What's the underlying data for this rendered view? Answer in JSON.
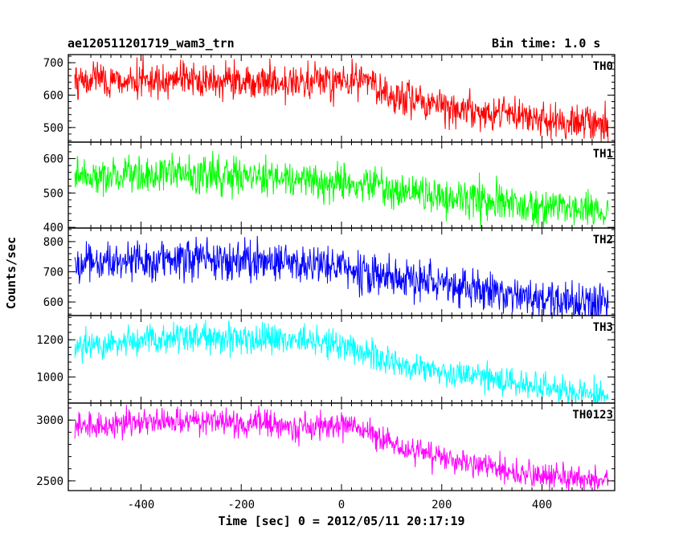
{
  "header": {
    "title": "ae120511201719_wam3_trn",
    "bin_time": "Bin time: 1.0 s"
  },
  "chart_data": {
    "type": "line",
    "title": "ae120511201719_wam3_trn",
    "xlabel": "Time [sec] 0 = 2012/05/11 20:17:19",
    "ylabel": "Counts/sec",
    "xlim": [
      -545,
      545
    ],
    "x_ticks": [
      -400,
      -200,
      0,
      200,
      400
    ],
    "x_range": [
      -532,
      532
    ],
    "series_shape_x": [
      -532,
      -400,
      -300,
      -200,
      -100,
      0,
      50,
      100,
      200,
      300,
      400,
      532
    ],
    "panels": [
      {
        "name": "TH0",
        "color": "#ff0000",
        "ylim": [
          455,
          725
        ],
        "y_ticks": [
          500,
          600,
          700
        ],
        "trend": [
          645,
          650,
          645,
          640,
          637,
          645,
          645,
          595,
          565,
          545,
          525,
          510
        ],
        "noise": 28
      },
      {
        "name": "TH1",
        "color": "#00ff00",
        "ylim": [
          398,
          648
        ],
        "y_ticks": [
          400,
          500,
          600
        ],
        "trend": [
          545,
          555,
          555,
          550,
          540,
          530,
          525,
          505,
          490,
          475,
          460,
          450
        ],
        "noise": 27
      },
      {
        "name": "TH2",
        "color": "#0000ff",
        "ylim": [
          555,
          845
        ],
        "y_ticks": [
          600,
          700,
          800
        ],
        "trend": [
          725,
          740,
          745,
          740,
          725,
          715,
          700,
          680,
          660,
          635,
          610,
          590
        ],
        "noise": 32
      },
      {
        "name": "TH3",
        "color": "#00ffff",
        "ylim": [
          860,
          1330
        ],
        "y_ticks": [
          1000,
          1200
        ],
        "trend": [
          1165,
          1195,
          1215,
          1210,
          1200,
          1165,
          1125,
          1085,
          1035,
          990,
          945,
          905
        ],
        "noise": 40
      },
      {
        "name": "TH0123",
        "color": "#ff00ff",
        "ylim": [
          2420,
          3140
        ],
        "y_ticks": [
          2500,
          3000
        ],
        "trend": [
          2950,
          2980,
          2995,
          2980,
          2945,
          2960,
          2920,
          2790,
          2690,
          2610,
          2540,
          2510
        ],
        "noise": 55
      }
    ]
  }
}
